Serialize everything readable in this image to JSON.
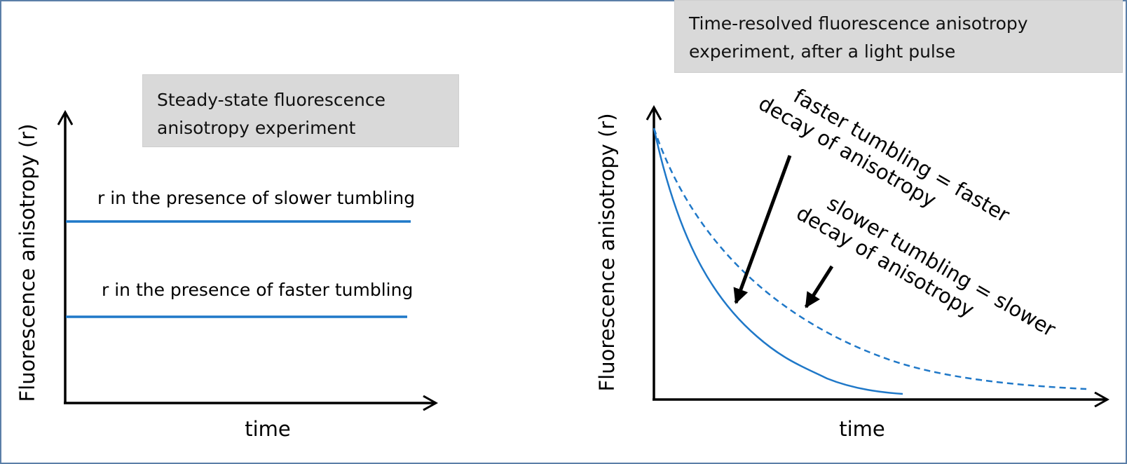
{
  "colors": {
    "border": "#5b7fa8",
    "curve": "#1f78c8",
    "axis": "#000000",
    "box_fill": "#d9d9d9"
  },
  "left_panel": {
    "title_line1": "Steady-state fluorescence",
    "title_line2": "anisotropy experiment",
    "ylabel": "Fluorescence anisotropy (r)",
    "xlabel": "time",
    "slow_label": "r in the presence of slower tumbling",
    "fast_label": "r in the presence of faster tumbling"
  },
  "right_panel": {
    "title_line1": "Time-resolved fluorescence anisotropy",
    "title_line2": "experiment, after a light pulse",
    "ylabel": "Fluorescence anisotropy (r)",
    "xlabel": "time",
    "fast_note_line1": "faster tumbling = faster",
    "fast_note_line2": "decay of anisotropy",
    "slow_note_line1": "slower tumbling = slower",
    "slow_note_line2": "decay of anisotropy"
  }
}
